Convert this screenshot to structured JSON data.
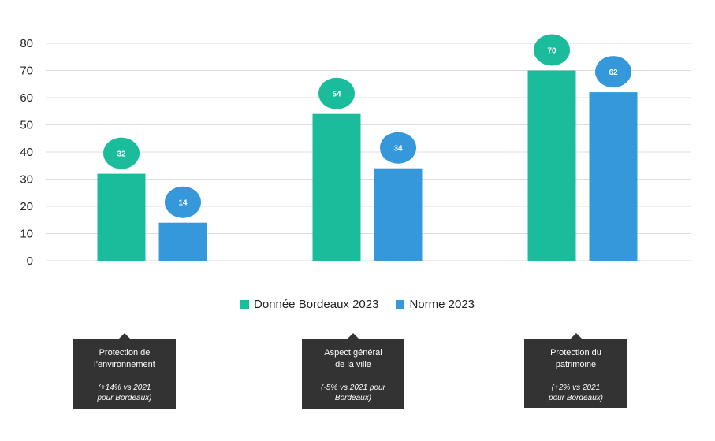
{
  "chart_data": {
    "type": "bar",
    "categories": [
      "Protection de l'environnement",
      "Aspect général de la ville",
      "Protection du patrimoine"
    ],
    "series": [
      {
        "name": "Donnée Bordeaux 2023",
        "color": "#1abc9c",
        "values": [
          32,
          54,
          70
        ]
      },
      {
        "name": "Norme 2023",
        "color": "#3498db",
        "values": [
          14,
          34,
          62
        ]
      }
    ],
    "ylim": [
      0,
      80
    ],
    "yticks": [
      0,
      10,
      20,
      30,
      40,
      50,
      60,
      70,
      80
    ],
    "grid": true,
    "legend_position": "bottom"
  },
  "category_boxes": [
    {
      "name_line1": "Protection de",
      "name_line2": "l’environnement",
      "note_line1": "(+14% vs 2021",
      "note_line2": "pour Bordeaux)"
    },
    {
      "name_line1": "Aspect général",
      "name_line2": "de la ville",
      "note_line1": "(-5% vs 2021 pour",
      "note_line2": "Bordeaux)"
    },
    {
      "name_line1": "Protection du",
      "name_line2": "patrimoine",
      "note_line1": "(+2% vs 2021",
      "note_line2": "pour Bordeaux)"
    }
  ]
}
